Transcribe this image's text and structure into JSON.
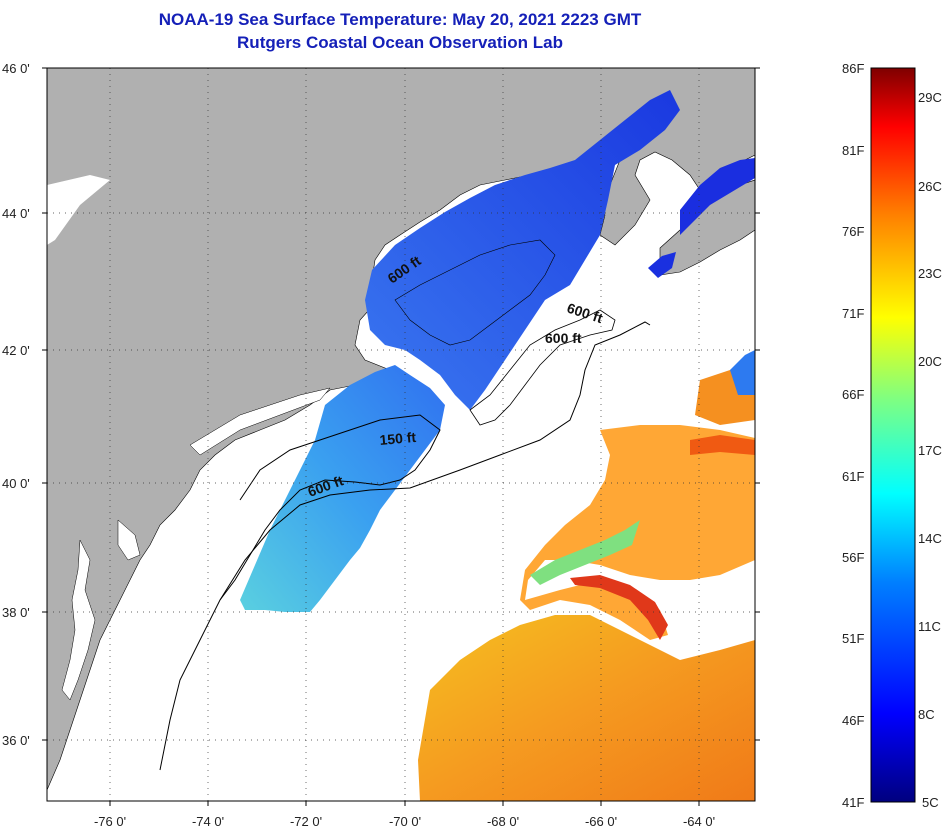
{
  "title": {
    "line1": "NOAA-19 Sea Surface Temperature:  May 20, 2021 2223 GMT",
    "line2": "Rutgers Coastal Ocean Observation Lab"
  },
  "map": {
    "lat_labels": [
      "46 0'",
      "44 0'",
      "42 0'",
      "40 0'",
      "38 0'",
      "36 0'"
    ],
    "lon_labels": [
      "-76 0'",
      "-74 0'",
      "-72 0'",
      "-70 0'",
      "-68 0'",
      "-66 0'",
      "-64 0'"
    ],
    "depth_labels": [
      "600 ft",
      "600 ft",
      "600 ft",
      "150 ft",
      "600 ft"
    ],
    "colors": {
      "land": "#b0b0b0",
      "ocean_nodata": "#ffffff",
      "frame": "#000000"
    }
  },
  "colorbar": {
    "f_labels": [
      "86F",
      "81F",
      "76F",
      "71F",
      "66F",
      "61F",
      "56F",
      "51F",
      "46F",
      "41F"
    ],
    "c_labels": [
      "29C",
      "26C",
      "23C",
      "20C",
      "17C",
      "14C",
      "11C",
      "8C",
      "5C"
    ],
    "gradient": [
      "#00007f",
      "#0000ff",
      "#0080ff",
      "#00ffff",
      "#80ff80",
      "#ffff00",
      "#ff8000",
      "#ff0000",
      "#7f0000"
    ]
  }
}
